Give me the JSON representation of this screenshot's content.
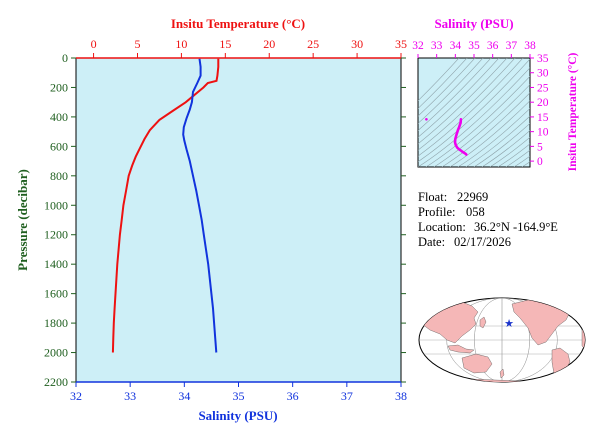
{
  "float_info": {
    "float_label": "Float:",
    "float_id": "22969",
    "profile_label": "Profile:",
    "profile_number": "058",
    "location_label": "Location:",
    "location_value": "36.2°N  -164.9°E",
    "date_label": "Date:",
    "date_value": "02/17/2026"
  },
  "colors": {
    "panel_bg": "#cdeff7",
    "temperature": "#ee1111",
    "salinity": "#1133dd",
    "ts_curve": "#ee00ee",
    "pressure_axis": "#1f5f1f",
    "contour": "#8fa3aa",
    "land": "#f5b7b7",
    "ocean": "#ffffff",
    "float_marker": "#1a33cc"
  },
  "chart_data": [
    {
      "type": "line",
      "name": "profile",
      "title": "",
      "y": {
        "label": "Pressure (decibar)",
        "range": [
          0,
          2200
        ],
        "inverted": true,
        "ticks": [
          0,
          200,
          400,
          600,
          800,
          1000,
          1200,
          1400,
          1600,
          1800,
          2000,
          2200
        ]
      },
      "x_top": {
        "label": "Insitu Temperature (°C)",
        "range": [
          -2,
          35
        ],
        "ticks": [
          0,
          5,
          10,
          15,
          20,
          25,
          30,
          35
        ]
      },
      "x_bottom": {
        "label": "Salinity (PSU)",
        "range": [
          32,
          38
        ],
        "ticks": [
          32,
          33,
          34,
          35,
          36,
          37,
          38
        ]
      },
      "grid": false,
      "series": [
        {
          "name": "Temperature",
          "axis": "top",
          "color": "#ee1111",
          "points": [
            [
              14.2,
              5
            ],
            [
              14.2,
              60
            ],
            [
              14.1,
              120
            ],
            [
              14.0,
              155
            ],
            [
              13.0,
              170
            ],
            [
              12.5,
              200
            ],
            [
              11.5,
              250
            ],
            [
              10.5,
              300
            ],
            [
              9.0,
              360
            ],
            [
              7.5,
              420
            ],
            [
              6.4,
              490
            ],
            [
              5.8,
              550
            ],
            [
              5.3,
              610
            ],
            [
              4.8,
              670
            ],
            [
              4.4,
              730
            ],
            [
              4.0,
              800
            ],
            [
              3.7,
              900
            ],
            [
              3.4,
              1000
            ],
            [
              3.2,
              1100
            ],
            [
              3.0,
              1200
            ],
            [
              2.85,
              1300
            ],
            [
              2.7,
              1400
            ],
            [
              2.6,
              1500
            ],
            [
              2.5,
              1600
            ],
            [
              2.4,
              1700
            ],
            [
              2.3,
              1800
            ],
            [
              2.25,
              1900
            ],
            [
              2.2,
              2000
            ]
          ]
        },
        {
          "name": "Salinity",
          "axis": "bottom",
          "color": "#1133dd",
          "points": [
            [
              34.28,
              5
            ],
            [
              34.3,
              60
            ],
            [
              34.3,
              120
            ],
            [
              34.24,
              170
            ],
            [
              34.16,
              230
            ],
            [
              34.14,
              300
            ],
            [
              34.1,
              350
            ],
            [
              34.04,
              410
            ],
            [
              33.99,
              470
            ],
            [
              33.98,
              520
            ],
            [
              34.0,
              560
            ],
            [
              34.04,
              620
            ],
            [
              34.1,
              700
            ],
            [
              34.16,
              800
            ],
            [
              34.22,
              900
            ],
            [
              34.27,
              1000
            ],
            [
              34.32,
              1100
            ],
            [
              34.36,
              1200
            ],
            [
              34.4,
              1300
            ],
            [
              34.44,
              1400
            ],
            [
              34.47,
              1500
            ],
            [
              34.5,
              1600
            ],
            [
              34.53,
              1700
            ],
            [
              34.55,
              1800
            ],
            [
              34.57,
              1900
            ],
            [
              34.59,
              2000
            ]
          ]
        }
      ]
    },
    {
      "type": "scatter",
      "name": "ts-diagram",
      "title": "",
      "x": {
        "label": "Salinity (PSU)",
        "range": [
          32,
          38
        ],
        "ticks": [
          32,
          33,
          34,
          35,
          36,
          37,
          38
        ]
      },
      "y": {
        "label": "Insitu Temperature (°C)",
        "range": [
          -2,
          35
        ],
        "ticks": [
          0,
          5,
          10,
          15,
          20,
          25,
          30,
          35
        ]
      },
      "series": [
        {
          "name": "T-S",
          "color": "#ee00ee",
          "points": [
            [
              34.3,
              14.2
            ],
            [
              34.28,
              13.0
            ],
            [
              34.2,
              11.5
            ],
            [
              34.14,
              10.5
            ],
            [
              34.06,
              9.0
            ],
            [
              34.0,
              7.5
            ],
            [
              33.98,
              6.4
            ],
            [
              34.02,
              5.5
            ],
            [
              34.1,
              4.6
            ],
            [
              34.2,
              4.0
            ],
            [
              34.3,
              3.6
            ],
            [
              34.4,
              3.1
            ],
            [
              34.5,
              2.7
            ],
            [
              34.56,
              2.4
            ],
            [
              34.59,
              2.2
            ]
          ]
        },
        {
          "name": "outlier",
          "color": "#ee00ee",
          "points": [
            [
              32.45,
              14.2
            ]
          ]
        }
      ]
    },
    {
      "type": "map",
      "name": "float-location",
      "projection": "world, Pacific-centered",
      "marker": {
        "lat": 36.2,
        "lon": -164.9
      }
    }
  ]
}
